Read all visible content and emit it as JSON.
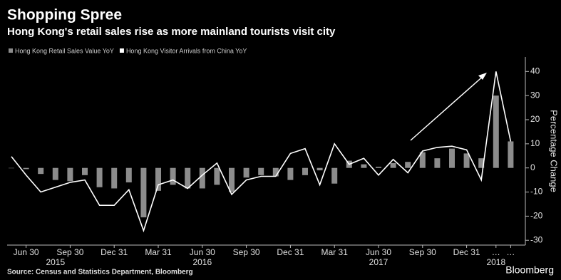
{
  "chart_data": {
    "type": "bar-line",
    "title": "Shopping Spree",
    "subtitle": "Hong Kong's retail sales rise as more mainland tourists visit city",
    "y_axis_label": "Percentage Change",
    "source": "Source: Census and Statistics Department, Bloomberg",
    "brand": "Bloomberg",
    "categories": [
      null,
      "Jun 30",
      null,
      null,
      "Sep 30",
      null,
      null,
      "Dec 31",
      null,
      null,
      "Mar 31",
      null,
      null,
      "Jun 30",
      null,
      null,
      "Sep 30",
      null,
      null,
      "Dec 31",
      null,
      null,
      "Mar 31",
      null,
      null,
      "Jun 30",
      null,
      null,
      "Sep 30",
      null,
      null,
      "Dec 31",
      null,
      "…",
      "…"
    ],
    "year_labels": [
      null,
      null,
      null,
      "2015",
      null,
      null,
      null,
      null,
      null,
      null,
      null,
      null,
      null,
      "2016",
      null,
      null,
      null,
      null,
      null,
      null,
      null,
      null,
      null,
      null,
      null,
      "2017",
      null,
      null,
      null,
      null,
      null,
      null,
      null,
      "2018",
      null
    ],
    "series": [
      {
        "name": "Hong Kong Retail Sales Value YoY",
        "color": "#8c8c8c",
        "kind": "bar",
        "values": [
          0,
          -0.5,
          -2.5,
          -5,
          -5.5,
          -3,
          -8,
          -8.5,
          -6,
          -20.5,
          -9.5,
          -7,
          -8.5,
          -8.5,
          -7,
          -10,
          -4,
          -3,
          -3.5,
          -5,
          -3,
          -1,
          -6.5,
          3,
          1.5,
          0.5,
          2,
          2.5,
          6.5,
          4,
          8,
          6,
          4,
          30,
          11
        ]
      },
      {
        "name": "Hong Kong Visitor Arrivals from China YoY",
        "color": "#ffffff",
        "kind": "line",
        "values": [
          4.7,
          -3,
          -10,
          -8,
          -6,
          -5,
          -15.5,
          -15.5,
          -9,
          -26,
          -7,
          -5,
          -8.5,
          -3,
          2,
          -11,
          -5,
          -3.5,
          -3.5,
          6,
          8,
          -7,
          10,
          1.5,
          4,
          -3,
          3.5,
          -2,
          7,
          8.5,
          9,
          7.5,
          -5,
          40,
          11
        ]
      }
    ],
    "ylim": [
      -32,
      46
    ],
    "yticks": [
      -30,
      -20,
      -10,
      0,
      10,
      20,
      30,
      40
    ],
    "grid": false
  }
}
